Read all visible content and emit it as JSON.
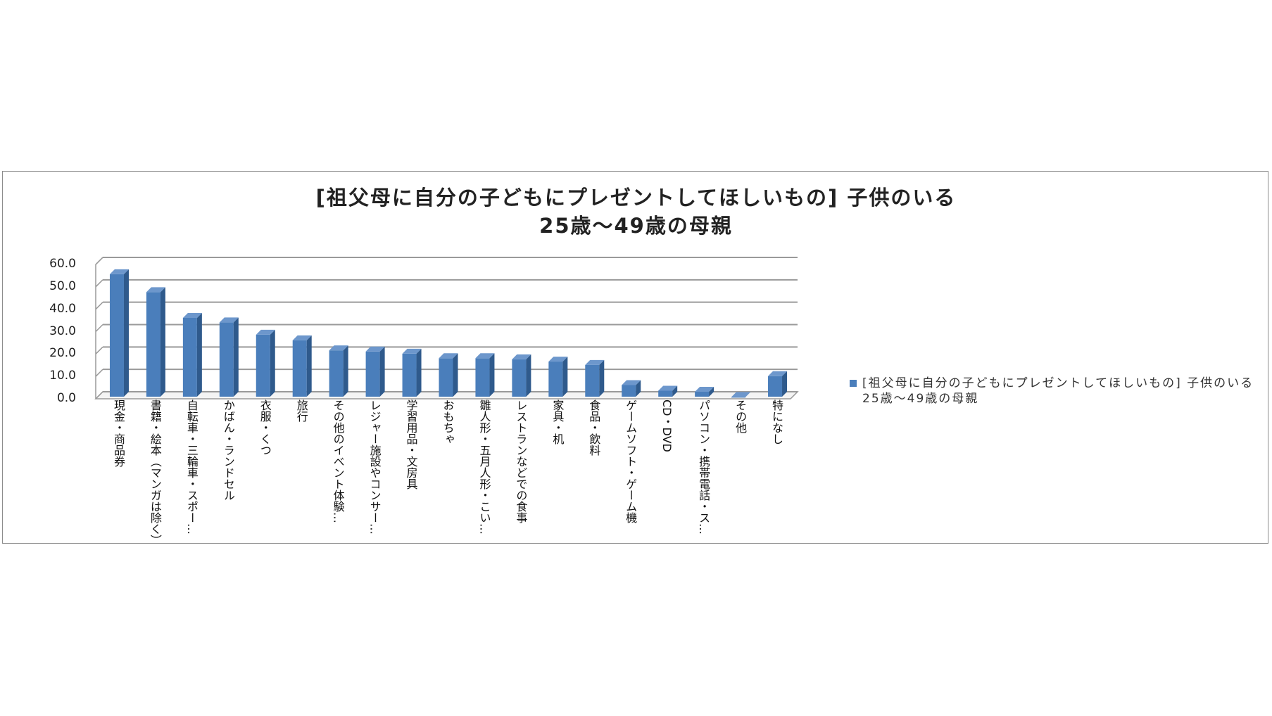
{
  "chart_data": {
    "type": "bar",
    "title": [
      "[祖父母に自分の子どもにプレゼントしてほしいもの] 子供のいる",
      "25歳～49歳の母親"
    ],
    "categories": [
      "現金・商品券",
      "書籍・絵本（マンガは除く）",
      "自転車・三輪車・スポー…",
      "かばん・ランドセル",
      "衣服・くつ",
      "旅行",
      "その他のイベント体験…",
      "レジャー施設やコンサー…",
      "学習用品・文房具",
      "おもちゃ",
      "雛人形・五月人形・こい…",
      "レストランなどでの食事",
      "家具・机",
      "食品・飲料",
      "ゲームソフト・ゲーム機",
      "CD・DVD",
      "パソコン・携帯電話・ス…",
      "その他",
      "特になし"
    ],
    "series": [
      {
        "name": "[祖父母に自分の子どもにプレゼントしてほしいもの] 子供のいる25歳～49歳の母親",
        "values": [
          55.0,
          47.0,
          35.5,
          33.5,
          28.0,
          25.5,
          21.0,
          20.5,
          19.5,
          17.5,
          17.5,
          17.0,
          16.0,
          14.5,
          5.5,
          3.0,
          2.5,
          0.2,
          9.5
        ]
      }
    ],
    "yticks": [
      "0.0",
      "10.0",
      "20.0",
      "30.0",
      "40.0",
      "50.0",
      "60.0"
    ],
    "ylim": [
      0,
      60
    ],
    "grid": true,
    "legend": "right",
    "bar_style": "3d-column",
    "color": "#4a7ebb"
  }
}
